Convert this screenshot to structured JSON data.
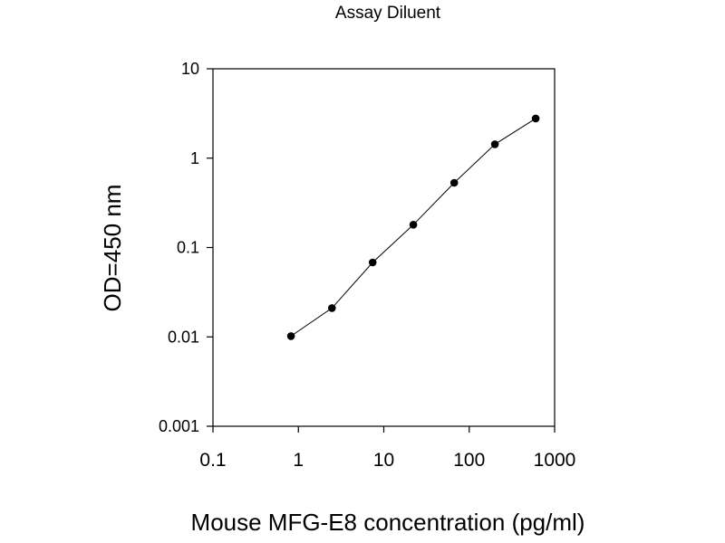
{
  "chart_data": {
    "type": "line",
    "title": "Assay Diluent",
    "xlabel": "Mouse MFG-E8 concentration (pg/ml)",
    "ylabel": "OD=450 nm",
    "x_scale": "log",
    "y_scale": "log",
    "xlim": [
      0.1,
      1000
    ],
    "ylim": [
      0.001,
      10
    ],
    "x_ticks": [
      "0.1",
      "1",
      "10",
      "100",
      "1000"
    ],
    "y_ticks": [
      "0.001",
      "0.01",
      "0.1",
      "1",
      "10"
    ],
    "grid": false,
    "legend": "none",
    "colors": {
      "line": "#000000",
      "marker": "#000000",
      "axis": "#000000"
    },
    "series": [
      {
        "x": [
          0.82,
          2.47,
          7.41,
          22.2,
          66.7,
          200,
          600
        ],
        "y": [
          0.0102,
          0.021,
          0.068,
          0.18,
          0.53,
          1.43,
          2.78
        ]
      }
    ]
  }
}
